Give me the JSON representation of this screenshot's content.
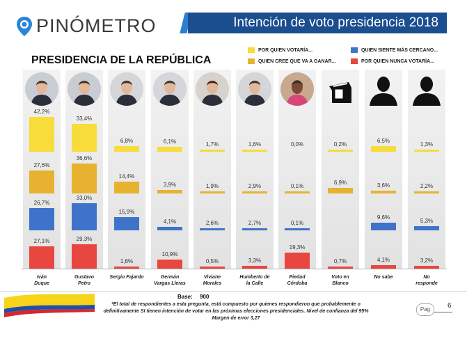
{
  "brand": {
    "name": "PINÓMETRO"
  },
  "header": {
    "title": "Intención de voto presidencia 2018"
  },
  "section_title": "PRESIDENCIA DE LA REPÚBLICA",
  "colors": {
    "series1": "#f7dc3a",
    "series2": "#e6b230",
    "series3": "#3f73c9",
    "series4": "#e8473f",
    "header": "#1a4e8f"
  },
  "chart_data": {
    "type": "bar",
    "title": "PRESIDENCIA DE LA REPÚBLICA",
    "categories": [
      "Iván Duque",
      "Gustavo Petro",
      "Sergio Fajardo",
      "Germán Vargas Lleras",
      "Viviane Morales",
      "Humberto de la Calle",
      "Piedad Córdoba",
      "Voto en Blanco",
      "No sabe",
      "No responde"
    ],
    "category_labels": [
      [
        "Iván",
        "Duque"
      ],
      [
        "Gustavo",
        "Petro"
      ],
      [
        "Sergio Fajardo"
      ],
      [
        "Germán",
        "Vargas Lleras"
      ],
      [
        "Viviane",
        "Morales"
      ],
      [
        "Humberto de",
        "la Calle"
      ],
      [
        "Piedad",
        "Córdoba"
      ],
      [
        "Voto en",
        "Blanco"
      ],
      [
        "No sabe"
      ],
      [
        "No",
        "responde"
      ]
    ],
    "series": [
      {
        "name": "POR QUIEN VOTARÍA...",
        "values": [
          42.2,
          33.4,
          6.8,
          6.1,
          1.7,
          1.6,
          0.0,
          0.2,
          6.5,
          1.3
        ],
        "labels": [
          "42,2%",
          "33,4%",
          "6,8%",
          "6,1%",
          "1,7%",
          "1,6%",
          "0,0%",
          "0,2%",
          "6,5%",
          "1,3%"
        ]
      },
      {
        "name": "QUIEN CREE QUE VA A GANAR...",
        "values": [
          27.6,
          36.6,
          14.4,
          3.9,
          1.9,
          2.9,
          0.1,
          6.9,
          3.6,
          2.2
        ],
        "labels": [
          "27,6%",
          "36,6%",
          "14,4%",
          "3,9%",
          "1,9%",
          "2,9%",
          "0,1%",
          "6,9%",
          "3,6%",
          "2,2%"
        ]
      },
      {
        "name": "QUIEN SIENTE MÁS CERCANO...",
        "values": [
          26.7,
          33.0,
          15.9,
          4.1,
          2.6,
          2.7,
          0.1,
          0.0,
          9.6,
          5.3
        ],
        "labels": [
          "26,7%",
          "33,0%",
          "15,9%",
          "4,1%",
          "2,6%",
          "2,7%",
          "0,1%",
          "",
          "9,6%",
          "5,3%"
        ]
      },
      {
        "name": "POR QUIEN NUNCA VOTARÍA...",
        "values": [
          27.1,
          29.3,
          1.6,
          10.9,
          0.5,
          3.3,
          19.3,
          0.7,
          4.1,
          3.2
        ],
        "labels": [
          "27,1%",
          "29,3%",
          "1,6%",
          "10,9%",
          "0,5%",
          "3,3%",
          "19,3%",
          "0,7%",
          "4,1%",
          "3,2%"
        ]
      }
    ]
  },
  "footer": {
    "base_label": "Base:",
    "base_value": "900",
    "note": "*El total de respondientes a esta pregunta, está compuesto por quienes respondieron que probablemente o definitivamente SI tienen intención de votar en las próximas elecciones presidenciales. Nivel de confianza del 95% Margen de error 3,27",
    "pag_label": "Pag",
    "page_number": "6"
  }
}
